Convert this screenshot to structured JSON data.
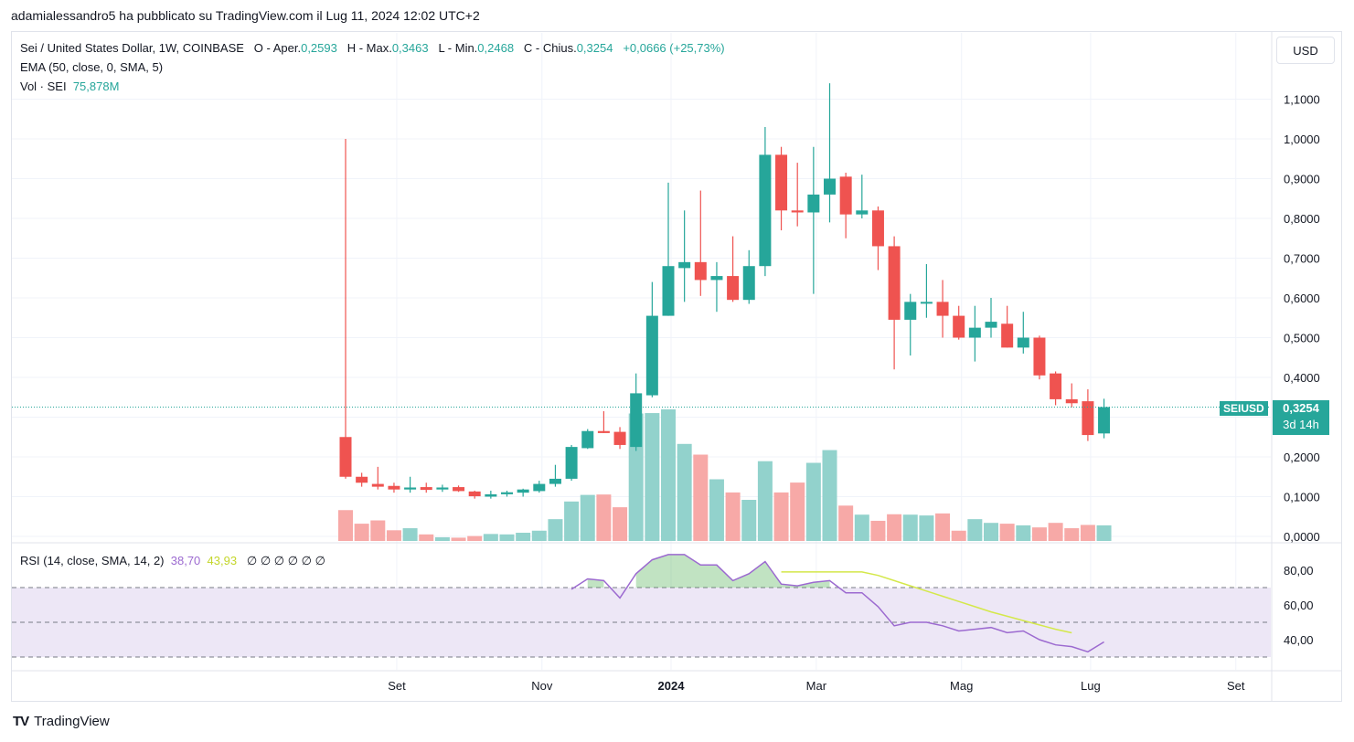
{
  "header": {
    "publish_line": "adamialessandro5 ha pubblicato su TradingView.com il Lug 11, 2024 12:02 UTC+2"
  },
  "legend": {
    "symbol": "Sei / United States Dollar, 1W, COINBASE",
    "o_label": "O - Aper.",
    "o_value": "0,2593",
    "h_label": "H - Max.",
    "h_value": "0,3463",
    "l_label": "L - Min.",
    "l_value": "0,2468",
    "c_label": "C - Chius.",
    "c_value": "0,3254",
    "change": "+0,0666 (+25,73%)",
    "ema": "EMA (50, close, 0, SMA, 5)",
    "vol_label": "Vol · SEI",
    "vol_value": "75,878M",
    "rsi_label": "RSI (14, close, SMA, 14, 2)",
    "rsi_value": "38,70",
    "rsi_ma_value": "43,93",
    "rsi_empty": "∅ ∅ ∅ ∅ ∅ ∅"
  },
  "currency_button": "USD",
  "price_tag": {
    "symbol": "SEIUSD",
    "price": "0,3254",
    "countdown": "3d 14h"
  },
  "footer": {
    "brand": "TradingView",
    "logo_text": "TV"
  },
  "colors": {
    "up": "#26a69a",
    "down": "#ef5350",
    "vol_up": "#92d2cc",
    "vol_down": "#f7a9a7",
    "rsi": "#9c6ad0",
    "rsi_ma": "#d4e84a",
    "rsi_band": "#ede7f6"
  },
  "chart_data": {
    "type": "candlestick",
    "timeframe": "1W",
    "y_axis": {
      "ticks": [
        "0,0000",
        "0,1000",
        "0,2000",
        "0,3000",
        "0,4000",
        "0,5000",
        "0,6000",
        "0,7000",
        "0,8000",
        "0,9000",
        "1,0000",
        "1,1000"
      ],
      "ylim": [
        0,
        1.1
      ]
    },
    "x_axis": {
      "ticks": [
        {
          "label": "Set",
          "week": 3
        },
        {
          "label": "Nov",
          "week": 12
        },
        {
          "label": "2024",
          "week": 20,
          "bold": true
        },
        {
          "label": "Mar",
          "week": 29
        },
        {
          "label": "Mag",
          "week": 38
        },
        {
          "label": "Lug",
          "week": 46
        },
        {
          "label": "Set",
          "week": 55
        }
      ]
    },
    "candles": [
      [
        0.25,
        1.0,
        0.145,
        0.15,
        75
      ],
      [
        0.15,
        0.16,
        0.125,
        0.135,
        42
      ],
      [
        0.132,
        0.175,
        0.118,
        0.125,
        50
      ],
      [
        0.127,
        0.135,
        0.11,
        0.118,
        26
      ],
      [
        0.118,
        0.15,
        0.11,
        0.123,
        31
      ],
      [
        0.124,
        0.135,
        0.11,
        0.117,
        16
      ],
      [
        0.118,
        0.13,
        0.112,
        0.123,
        9
      ],
      [
        0.124,
        0.128,
        0.112,
        0.114,
        8
      ],
      [
        0.113,
        0.115,
        0.095,
        0.101,
        12
      ],
      [
        0.1,
        0.115,
        0.095,
        0.106,
        17
      ],
      [
        0.106,
        0.115,
        0.1,
        0.111,
        16
      ],
      [
        0.11,
        0.12,
        0.1,
        0.118,
        20
      ],
      [
        0.114,
        0.14,
        0.11,
        0.132,
        25
      ],
      [
        0.132,
        0.18,
        0.125,
        0.145,
        53
      ],
      [
        0.145,
        0.23,
        0.14,
        0.225,
        96
      ],
      [
        0.222,
        0.27,
        0.22,
        0.265,
        112
      ],
      [
        0.265,
        0.315,
        0.26,
        0.26,
        113
      ],
      [
        0.263,
        0.275,
        0.22,
        0.23,
        82
      ],
      [
        0.225,
        0.41,
        0.215,
        0.36,
        310
      ],
      [
        0.355,
        0.64,
        0.35,
        0.555,
        311
      ],
      [
        0.555,
        0.89,
        0.555,
        0.68,
        320
      ],
      [
        0.675,
        0.82,
        0.59,
        0.69,
        236
      ],
      [
        0.69,
        0.87,
        0.605,
        0.645,
        210
      ],
      [
        0.645,
        0.69,
        0.565,
        0.655,
        150
      ],
      [
        0.655,
        0.755,
        0.59,
        0.595,
        118
      ],
      [
        0.595,
        0.72,
        0.585,
        0.68,
        100
      ],
      [
        0.68,
        1.03,
        0.655,
        0.96,
        194
      ],
      [
        0.96,
        0.98,
        0.77,
        0.82,
        118
      ],
      [
        0.82,
        0.94,
        0.78,
        0.815,
        142
      ],
      [
        0.815,
        0.98,
        0.61,
        0.86,
        190
      ],
      [
        0.86,
        1.14,
        0.79,
        0.9,
        221
      ],
      [
        0.905,
        0.915,
        0.75,
        0.81,
        86
      ],
      [
        0.81,
        0.91,
        0.8,
        0.82,
        64
      ],
      [
        0.82,
        0.83,
        0.67,
        0.73,
        49
      ],
      [
        0.73,
        0.755,
        0.42,
        0.545,
        65
      ],
      [
        0.545,
        0.61,
        0.455,
        0.59,
        64
      ],
      [
        0.59,
        0.685,
        0.55,
        0.59,
        62
      ],
      [
        0.59,
        0.645,
        0.5,
        0.555,
        67
      ],
      [
        0.555,
        0.58,
        0.495,
        0.5,
        25
      ],
      [
        0.5,
        0.58,
        0.44,
        0.525,
        53
      ],
      [
        0.525,
        0.6,
        0.5,
        0.54,
        44
      ],
      [
        0.535,
        0.58,
        0.475,
        0.475,
        42
      ],
      [
        0.475,
        0.565,
        0.46,
        0.5,
        38
      ],
      [
        0.5,
        0.505,
        0.395,
        0.405,
        33
      ],
      [
        0.41,
        0.415,
        0.33,
        0.345,
        44
      ],
      [
        0.345,
        0.385,
        0.325,
        0.335,
        31
      ],
      [
        0.34,
        0.37,
        0.24,
        0.255,
        39
      ],
      [
        0.259,
        0.3463,
        0.2468,
        0.3254,
        38
      ]
    ],
    "candle_fields": [
      "open",
      "high",
      "low",
      "close",
      "volume"
    ],
    "rsi": {
      "ticks": [
        "40,00",
        "60,00",
        "80,00"
      ],
      "ylim": [
        25,
        95
      ],
      "bands": [
        30,
        50,
        70
      ],
      "start_week": 14,
      "values": [
        69,
        75,
        74,
        64,
        78,
        86,
        89,
        89,
        83,
        83,
        74,
        78,
        85,
        72,
        71,
        73,
        74,
        67,
        67,
        59,
        48,
        50,
        50,
        48,
        45,
        46,
        47,
        44,
        45,
        40,
        37,
        36,
        33,
        38.7
      ],
      "ma_start_week": 27,
      "ma_values": [
        79,
        79,
        79,
        79,
        79,
        79,
        77,
        74,
        71,
        68,
        65,
        62,
        59,
        56,
        53.5,
        51,
        48.5,
        46,
        43.93
      ]
    }
  }
}
